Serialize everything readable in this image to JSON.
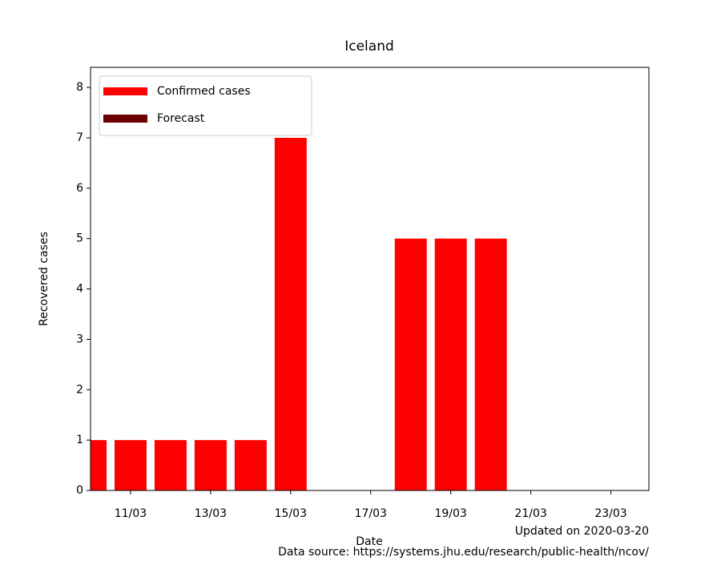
{
  "chart_data": {
    "type": "bar",
    "title": "Iceland",
    "x_label": "Date",
    "y_label": "Recovered cases",
    "annotations": [
      "Updated on 2020-03-20",
      "Data source: https://systems.jhu.edu/research/public-health/ncov/"
    ],
    "series": [
      {
        "name": "Confirmed cases",
        "color": "#ff0000",
        "x": [
          10,
          11,
          12,
          13,
          14,
          15,
          16,
          17,
          18,
          19,
          20
        ],
        "values": [
          1,
          1,
          1,
          1,
          1,
          7,
          0,
          0,
          5,
          5,
          5
        ]
      },
      {
        "name": "Forecast",
        "color": "#6b0000",
        "x": [],
        "values": []
      }
    ],
    "xlim": [
      10,
      23.95
    ],
    "xticks": [
      {
        "value": 11,
        "label": "11/03"
      },
      {
        "value": 13,
        "label": "13/03"
      },
      {
        "value": 15,
        "label": "15/03"
      },
      {
        "value": 17,
        "label": "17/03"
      },
      {
        "value": 19,
        "label": "19/03"
      },
      {
        "value": 21,
        "label": "21/03"
      },
      {
        "value": 23,
        "label": "23/03"
      }
    ],
    "ylim": [
      0,
      8.4
    ],
    "yticks": [
      0,
      1,
      2,
      3,
      4,
      5,
      6,
      7,
      8
    ],
    "legend": "upper left",
    "grid": false
  }
}
